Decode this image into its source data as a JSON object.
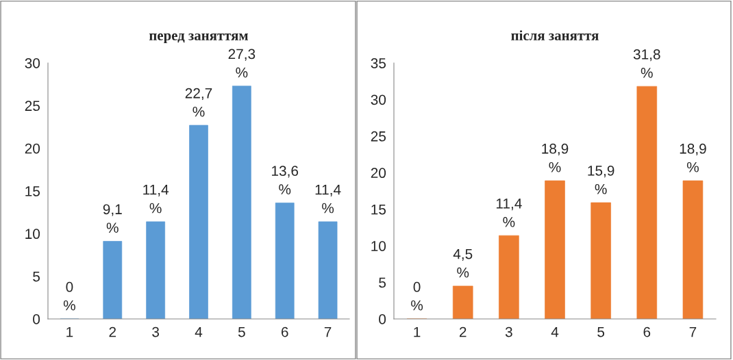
{
  "chart_data": [
    {
      "type": "bar",
      "title": "перед заняттям",
      "categories": [
        "1",
        "2",
        "3",
        "4",
        "5",
        "6",
        "7"
      ],
      "values": [
        0,
        9.1,
        11.4,
        22.7,
        27.3,
        13.6,
        11.4
      ],
      "color": "#5b9bd5",
      "value_labels": [
        "0\n%",
        "9,1\n%",
        "11,4\n%",
        "22,7\n%",
        "27,3\n%",
        "13,6\n%",
        "11,4\n%"
      ],
      "ylim": [
        0,
        30
      ],
      "yticks": [
        0,
        5,
        10,
        15,
        20,
        25,
        30
      ],
      "grid": false,
      "legend": false
    },
    {
      "type": "bar",
      "title": "після заняття",
      "categories": [
        "1",
        "2",
        "3",
        "4",
        "5",
        "6",
        "7"
      ],
      "values": [
        0,
        4.5,
        11.4,
        18.9,
        15.9,
        31.8,
        18.9
      ],
      "color": "#ed7d31",
      "value_labels": [
        "0\n%",
        "4,5\n%",
        "11,4\n%",
        "18,9\n%",
        "15,9\n%",
        "31,8\n%",
        "18,9\n%"
      ],
      "ylim": [
        0,
        35
      ],
      "yticks": [
        0,
        5,
        10,
        15,
        20,
        25,
        30,
        35
      ],
      "grid": false,
      "legend": false
    }
  ]
}
